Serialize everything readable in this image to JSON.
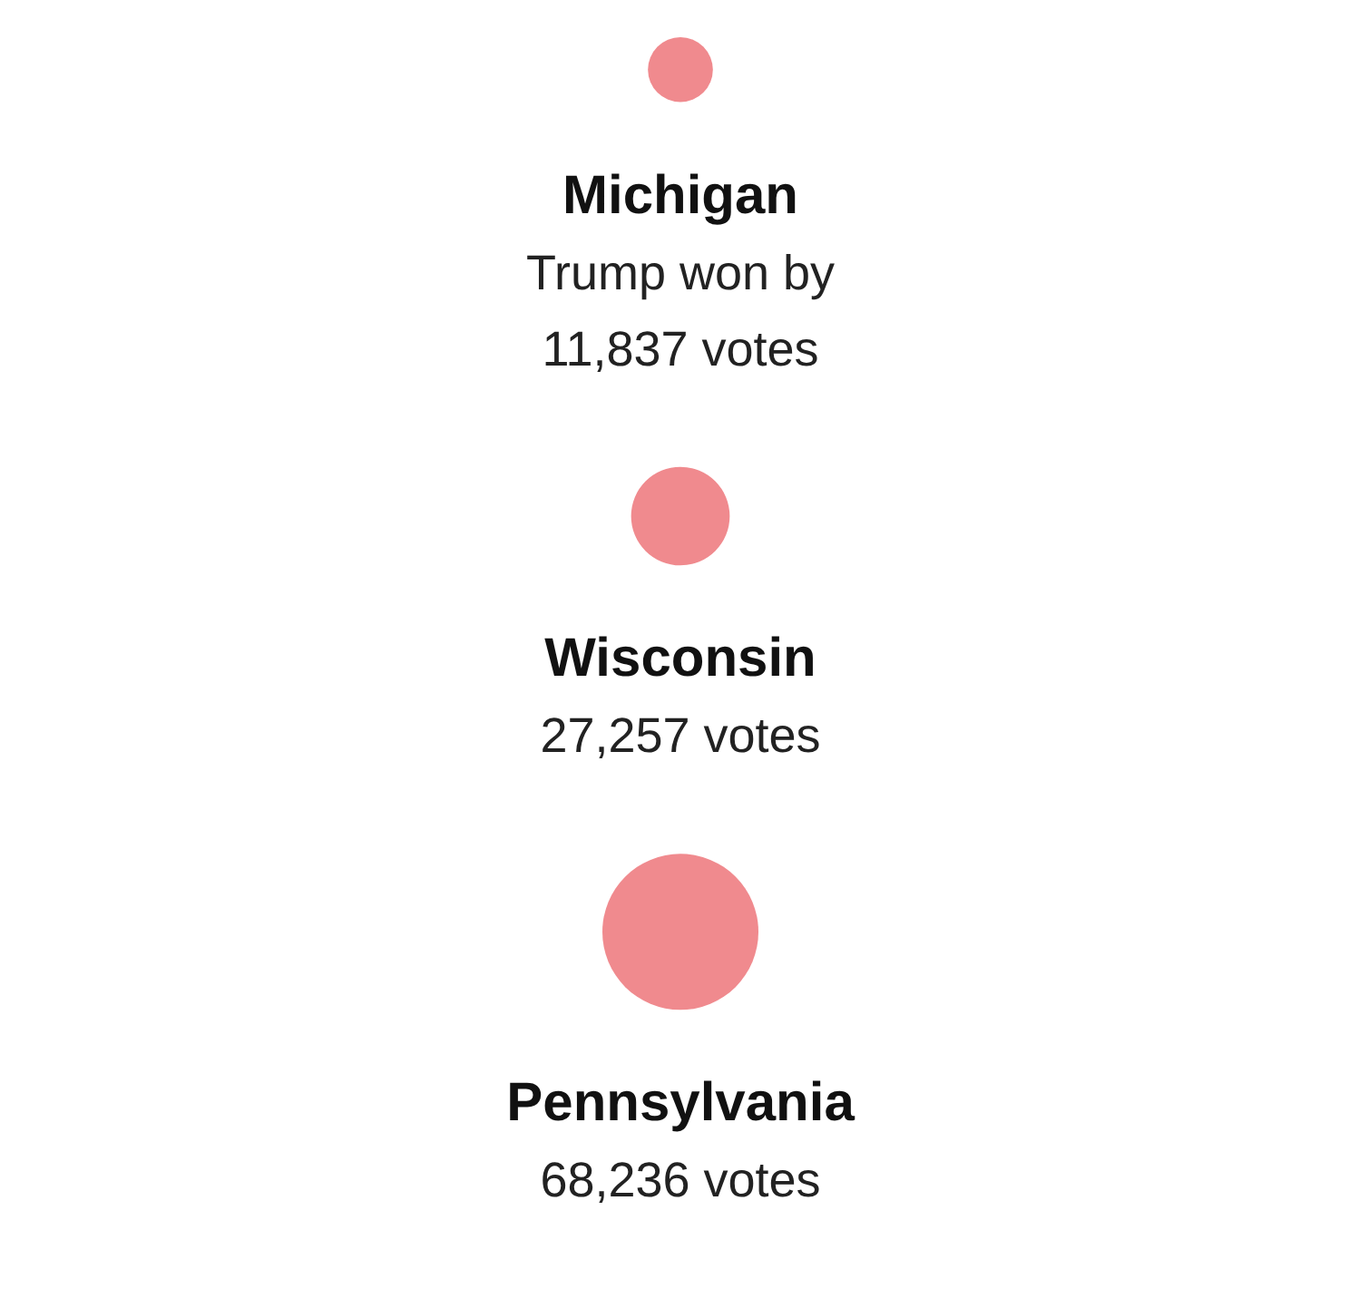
{
  "chart_data": {
    "type": "other",
    "categories": [
      "Michigan",
      "Wisconsin",
      "Pennsylvania"
    ],
    "values": [
      11837,
      27257,
      68236
    ],
    "color": "#f08a8e",
    "value_labels": [
      "Trump won by\n11,837 votes",
      "27,257 votes",
      "68,236 votes"
    ]
  }
}
